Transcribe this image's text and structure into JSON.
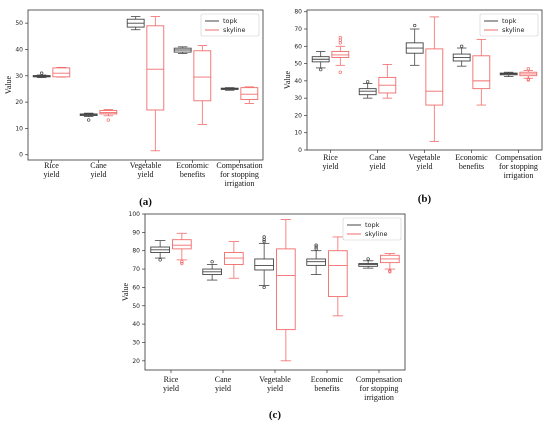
{
  "chart_data": [
    {
      "type": "box",
      "panel_label": "(a)",
      "ylabel": "Value",
      "ylim": [
        -2,
        55
      ],
      "yticks": [
        0,
        10,
        20,
        30,
        40,
        50
      ],
      "categories": [
        [
          "Rice",
          "yield"
        ],
        [
          "Cane",
          "yield"
        ],
        [
          "Vegetable",
          "yield"
        ],
        [
          "Economic",
          "benefits"
        ],
        [
          "Compensation",
          "for stopping",
          "irrigation"
        ]
      ],
      "legend": {
        "position": "top-right",
        "entries": [
          "topk",
          "skyline"
        ]
      },
      "series": [
        {
          "name": "topk",
          "color": "#444444",
          "boxes": [
            {
              "whislo": 29.3,
              "q1": 29.6,
              "med": 29.9,
              "q3": 30.1,
              "whishi": 30.3,
              "fliers": [
                31
              ]
            },
            {
              "whislo": 14.5,
              "q1": 14.9,
              "med": 15.2,
              "q3": 15.5,
              "whishi": 15.8,
              "fliers": [
                13.2
              ]
            },
            {
              "whislo": 47.5,
              "q1": 48.5,
              "med": 50,
              "q3": 51.5,
              "whishi": 52.5,
              "fliers": []
            },
            {
              "whislo": 38.5,
              "q1": 39,
              "med": 39.8,
              "q3": 40.5,
              "whishi": 41,
              "fliers": []
            },
            {
              "whislo": 24.5,
              "q1": 24.8,
              "med": 25,
              "q3": 25.3,
              "whishi": 25.5,
              "fliers": []
            }
          ]
        },
        {
          "name": "skyline",
          "color": "#f26b6b",
          "boxes": [
            {
              "whislo": 29.5,
              "q1": 29.6,
              "med": 31,
              "q3": 33,
              "whishi": 33.2,
              "fliers": []
            },
            {
              "whislo": 14.8,
              "q1": 15.5,
              "med": 16,
              "q3": 16.8,
              "whishi": 17.2,
              "fliers": [
                13.2
              ]
            },
            {
              "whislo": 1.5,
              "q1": 17,
              "med": 32.5,
              "q3": 49,
              "whishi": 52.5,
              "fliers": []
            },
            {
              "whislo": 11.5,
              "q1": 20.5,
              "med": 29.5,
              "q3": 39.5,
              "whishi": 41.5,
              "fliers": []
            },
            {
              "whislo": 19.5,
              "q1": 21,
              "med": 23,
              "q3": 25.5,
              "whishi": 25.8,
              "fliers": []
            }
          ]
        }
      ]
    },
    {
      "type": "box",
      "panel_label": "(b)",
      "ylabel": "Value",
      "ylim": [
        0,
        81
      ],
      "yticks": [
        0,
        10,
        20,
        30,
        40,
        50,
        60,
        70,
        80
      ],
      "categories": [
        [
          "Rice",
          "yield"
        ],
        [
          "Cane",
          "yield"
        ],
        [
          "Vegetable",
          "yield"
        ],
        [
          "Economic",
          "benefits"
        ],
        [
          "Compensation",
          "for stopping",
          "irrigation"
        ]
      ],
      "legend": {
        "position": "top-right",
        "entries": [
          "topk",
          "skyline"
        ]
      },
      "series": [
        {
          "name": "topk",
          "color": "#444444",
          "boxes": [
            {
              "whislo": 47.5,
              "q1": 51,
              "med": 52.5,
              "q3": 54,
              "whishi": 57,
              "fliers": [
                46.5
              ]
            },
            {
              "whislo": 30,
              "q1": 32,
              "med": 34,
              "q3": 35.5,
              "whishi": 38.5,
              "fliers": [
                39.5
              ]
            },
            {
              "whislo": 49,
              "q1": 56,
              "med": 59,
              "q3": 62,
              "whishi": 70,
              "fliers": [
                72
              ]
            },
            {
              "whislo": 48.5,
              "q1": 51.5,
              "med": 53.5,
              "q3": 55.5,
              "whishi": 59,
              "fliers": [
                60
              ]
            },
            {
              "whislo": 42.5,
              "q1": 43.5,
              "med": 44,
              "q3": 44.5,
              "whishi": 45,
              "fliers": []
            }
          ]
        },
        {
          "name": "skyline",
          "color": "#f26b6b",
          "boxes": [
            {
              "whislo": 49,
              "q1": 53.5,
              "med": 55,
              "q3": 57,
              "whishi": 60,
              "fliers": [
                45,
                62,
                63.5,
                65
              ]
            },
            {
              "whislo": 30,
              "q1": 33,
              "med": 37.5,
              "q3": 42,
              "whishi": 49.5,
              "fliers": []
            },
            {
              "whislo": 5,
              "q1": 26,
              "med": 34,
              "q3": 58.5,
              "whishi": 77,
              "fliers": []
            },
            {
              "whislo": 26,
              "q1": 35.5,
              "med": 40,
              "q3": 54.5,
              "whishi": 64,
              "fliers": []
            },
            {
              "whislo": 41.5,
              "q1": 43,
              "med": 44,
              "q3": 45,
              "whishi": 46,
              "fliers": [
                40.5,
                41,
                47
              ]
            }
          ]
        }
      ]
    },
    {
      "type": "box",
      "panel_label": "(c)",
      "ylabel": "Value",
      "ylim": [
        15,
        100
      ],
      "yticks": [
        20,
        30,
        40,
        50,
        60,
        70,
        80,
        90,
        100
      ],
      "categories": [
        [
          "Rice",
          "yield"
        ],
        [
          "Cane",
          "yield"
        ],
        [
          "Vegetable",
          "yield"
        ],
        [
          "Economic",
          "benefits"
        ],
        [
          "Compensation",
          "for stopping",
          "irrigation"
        ]
      ],
      "legend": {
        "position": "top-right",
        "entries": [
          "topk",
          "skyline"
        ]
      },
      "series": [
        {
          "name": "topk",
          "color": "#444444",
          "boxes": [
            {
              "whislo": 76,
              "q1": 79,
              "med": 80.5,
              "q3": 82,
              "whishi": 85.5,
              "fliers": [
                75
              ]
            },
            {
              "whislo": 64,
              "q1": 67,
              "med": 68.5,
              "q3": 70,
              "whishi": 72.5,
              "fliers": [
                74
              ]
            },
            {
              "whislo": 61,
              "q1": 69.5,
              "med": 72,
              "q3": 75.5,
              "whishi": 84,
              "fliers": [
                60,
                85,
                86,
                87.5
              ]
            },
            {
              "whislo": 67,
              "q1": 72,
              "med": 74,
              "q3": 75.5,
              "whishi": 80,
              "fliers": [
                81,
                82,
                83
              ]
            },
            {
              "whislo": 70.5,
              "q1": 71.5,
              "med": 72.5,
              "q3": 73,
              "whishi": 74.5,
              "fliers": [
                75.5
              ]
            }
          ]
        },
        {
          "name": "skyline",
          "color": "#f26b6b",
          "boxes": [
            {
              "whislo": 75,
              "q1": 81,
              "med": 83,
              "q3": 86,
              "whishi": 89.5,
              "fliers": [
                73,
                74
              ]
            },
            {
              "whislo": 65,
              "q1": 72.5,
              "med": 76,
              "q3": 79,
              "whishi": 85,
              "fliers": []
            },
            {
              "whislo": 20,
              "q1": 37,
              "med": 66.5,
              "q3": 81,
              "whishi": 97,
              "fliers": []
            },
            {
              "whislo": 44.5,
              "q1": 55,
              "med": 72,
              "q3": 80,
              "whishi": 87.5,
              "fliers": []
            },
            {
              "whislo": 70,
              "q1": 73.5,
              "med": 75.5,
              "q3": 77.5,
              "whishi": 78.5,
              "fliers": [
                68.5,
                69
              ]
            }
          ]
        }
      ]
    }
  ]
}
